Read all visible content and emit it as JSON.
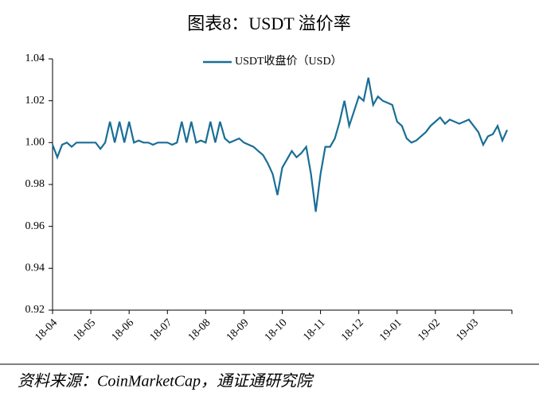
{
  "chart_data": {
    "type": "line",
    "title": "图表8：USDT 溢价率",
    "source": "资料来源：CoinMarketCap，通证通研究院",
    "categories": [
      "18-04",
      null,
      null,
      null,
      null,
      null,
      null,
      null,
      "18-05",
      null,
      null,
      null,
      null,
      null,
      null,
      null,
      "18-06",
      null,
      null,
      null,
      null,
      null,
      null,
      null,
      "18-07",
      null,
      null,
      null,
      null,
      null,
      null,
      null,
      "18-08",
      null,
      null,
      null,
      null,
      null,
      null,
      null,
      "18-09",
      null,
      null,
      null,
      null,
      null,
      null,
      null,
      "18-10",
      null,
      null,
      null,
      null,
      null,
      null,
      null,
      "18-11",
      null,
      null,
      null,
      null,
      null,
      null,
      null,
      "18-12",
      null,
      null,
      null,
      null,
      null,
      null,
      null,
      "19-01",
      null,
      null,
      null,
      null,
      null,
      null,
      null,
      "19-02",
      null,
      null,
      null,
      null,
      null,
      null,
      null,
      "19-03",
      null,
      null,
      null,
      null,
      null,
      null,
      null
    ],
    "series": [
      {
        "name": "USDT收盘价（USD）",
        "color": "#1a6e96",
        "values": [
          0.999,
          0.993,
          0.999,
          1.0,
          0.998,
          1.0,
          1.0,
          1.0,
          1.0,
          1.0,
          0.997,
          1.0,
          1.01,
          1.0,
          1.01,
          1.0,
          1.01,
          1.0,
          1.001,
          1.0,
          1.0,
          0.999,
          1.0,
          1.0,
          1.0,
          0.999,
          1.0,
          1.01,
          1.0,
          1.01,
          1.0,
          1.001,
          1.0,
          1.01,
          1.0,
          1.01,
          1.002,
          1.0,
          1.001,
          1.002,
          1.0,
          0.999,
          0.998,
          0.996,
          0.994,
          0.99,
          0.985,
          0.975,
          0.988,
          0.992,
          0.996,
          0.993,
          0.995,
          0.998,
          0.985,
          0.967,
          0.985,
          0.998,
          0.998,
          1.002,
          1.01,
          1.02,
          1.008,
          1.015,
          1.022,
          1.02,
          1.031,
          1.018,
          1.022,
          1.02,
          1.019,
          1.018,
          1.01,
          1.008,
          1.002,
          1.0,
          1.001,
          1.003,
          1.005,
          1.008,
          1.01,
          1.012,
          1.009,
          1.011,
          1.01,
          1.009,
          1.01,
          1.011,
          1.008,
          1.005,
          0.999,
          1.003,
          1.004,
          1.008,
          1.001,
          1.006
        ]
      }
    ],
    "ylim": [
      0.92,
      1.04
    ],
    "yticks": [
      0.92,
      0.94,
      0.96,
      0.98,
      {
        "value": 1,
        "label": "1.00"
      },
      1.02,
      1.04
    ],
    "legend": "top"
  }
}
